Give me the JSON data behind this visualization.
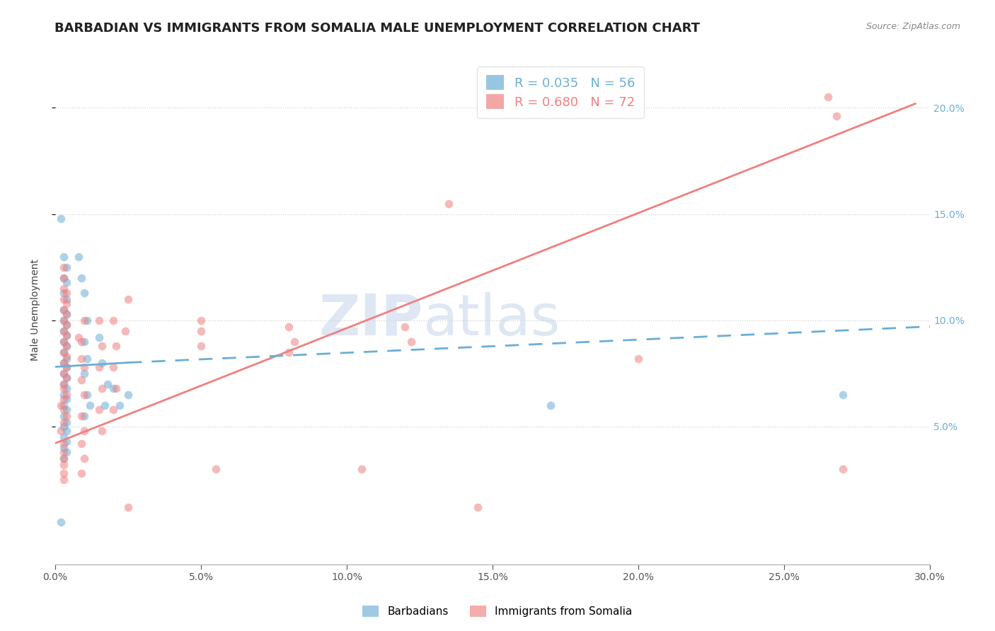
{
  "title": "BARBADIAN VS IMMIGRANTS FROM SOMALIA MALE UNEMPLOYMENT CORRELATION CHART",
  "source": "Source: ZipAtlas.com",
  "ylabel": "Male Unemployment",
  "xlim": [
    0.0,
    0.3
  ],
  "ylim": [
    -0.015,
    0.225
  ],
  "watermark_parts": [
    "ZIP",
    "atlas"
  ],
  "barbadian_scatter": [
    [
      0.002,
      0.148
    ],
    [
      0.003,
      0.13
    ],
    [
      0.004,
      0.125
    ],
    [
      0.003,
      0.12
    ],
    [
      0.004,
      0.118
    ],
    [
      0.003,
      0.113
    ],
    [
      0.004,
      0.11
    ],
    [
      0.003,
      0.105
    ],
    [
      0.004,
      0.103
    ],
    [
      0.003,
      0.1
    ],
    [
      0.004,
      0.098
    ],
    [
      0.003,
      0.095
    ],
    [
      0.004,
      0.093
    ],
    [
      0.003,
      0.09
    ],
    [
      0.004,
      0.088
    ],
    [
      0.003,
      0.085
    ],
    [
      0.004,
      0.082
    ],
    [
      0.003,
      0.08
    ],
    [
      0.004,
      0.078
    ],
    [
      0.003,
      0.075
    ],
    [
      0.004,
      0.073
    ],
    [
      0.003,
      0.07
    ],
    [
      0.004,
      0.068
    ],
    [
      0.003,
      0.065
    ],
    [
      0.004,
      0.063
    ],
    [
      0.003,
      0.06
    ],
    [
      0.004,
      0.058
    ],
    [
      0.003,
      0.055
    ],
    [
      0.004,
      0.052
    ],
    [
      0.003,
      0.05
    ],
    [
      0.004,
      0.048
    ],
    [
      0.003,
      0.045
    ],
    [
      0.004,
      0.043
    ],
    [
      0.003,
      0.04
    ],
    [
      0.004,
      0.038
    ],
    [
      0.003,
      0.035
    ],
    [
      0.008,
      0.13
    ],
    [
      0.009,
      0.12
    ],
    [
      0.01,
      0.113
    ],
    [
      0.011,
      0.1
    ],
    [
      0.01,
      0.09
    ],
    [
      0.011,
      0.082
    ],
    [
      0.01,
      0.075
    ],
    [
      0.011,
      0.065
    ],
    [
      0.012,
      0.06
    ],
    [
      0.01,
      0.055
    ],
    [
      0.015,
      0.092
    ],
    [
      0.016,
      0.08
    ],
    [
      0.018,
      0.07
    ],
    [
      0.017,
      0.06
    ],
    [
      0.02,
      0.068
    ],
    [
      0.022,
      0.06
    ],
    [
      0.025,
      0.065
    ],
    [
      0.17,
      0.06
    ],
    [
      0.27,
      0.065
    ],
    [
      0.002,
      0.005
    ]
  ],
  "somalia_scatter": [
    [
      0.002,
      0.048
    ],
    [
      0.003,
      0.052
    ],
    [
      0.003,
      0.058
    ],
    [
      0.002,
      0.06
    ],
    [
      0.003,
      0.063
    ],
    [
      0.004,
      0.055
    ],
    [
      0.003,
      0.068
    ],
    [
      0.004,
      0.065
    ],
    [
      0.003,
      0.07
    ],
    [
      0.004,
      0.073
    ],
    [
      0.003,
      0.075
    ],
    [
      0.004,
      0.078
    ],
    [
      0.003,
      0.08
    ],
    [
      0.004,
      0.083
    ],
    [
      0.003,
      0.085
    ],
    [
      0.004,
      0.088
    ],
    [
      0.003,
      0.09
    ],
    [
      0.004,
      0.093
    ],
    [
      0.003,
      0.095
    ],
    [
      0.004,
      0.098
    ],
    [
      0.003,
      0.1
    ],
    [
      0.004,
      0.103
    ],
    [
      0.003,
      0.105
    ],
    [
      0.004,
      0.108
    ],
    [
      0.003,
      0.11
    ],
    [
      0.004,
      0.113
    ],
    [
      0.003,
      0.115
    ],
    [
      0.003,
      0.12
    ],
    [
      0.003,
      0.125
    ],
    [
      0.003,
      0.042
    ],
    [
      0.003,
      0.038
    ],
    [
      0.003,
      0.035
    ],
    [
      0.003,
      0.032
    ],
    [
      0.003,
      0.028
    ],
    [
      0.003,
      0.025
    ],
    [
      0.008,
      0.092
    ],
    [
      0.009,
      0.082
    ],
    [
      0.01,
      0.1
    ],
    [
      0.009,
      0.09
    ],
    [
      0.01,
      0.078
    ],
    [
      0.009,
      0.072
    ],
    [
      0.01,
      0.065
    ],
    [
      0.009,
      0.055
    ],
    [
      0.01,
      0.048
    ],
    [
      0.009,
      0.042
    ],
    [
      0.01,
      0.035
    ],
    [
      0.009,
      0.028
    ],
    [
      0.015,
      0.1
    ],
    [
      0.016,
      0.088
    ],
    [
      0.015,
      0.078
    ],
    [
      0.016,
      0.068
    ],
    [
      0.015,
      0.058
    ],
    [
      0.016,
      0.048
    ],
    [
      0.02,
      0.1
    ],
    [
      0.021,
      0.088
    ],
    [
      0.02,
      0.078
    ],
    [
      0.021,
      0.068
    ],
    [
      0.02,
      0.058
    ],
    [
      0.025,
      0.11
    ],
    [
      0.024,
      0.095
    ],
    [
      0.05,
      0.095
    ],
    [
      0.05,
      0.088
    ],
    [
      0.05,
      0.1
    ],
    [
      0.08,
      0.097
    ],
    [
      0.082,
      0.09
    ],
    [
      0.08,
      0.085
    ],
    [
      0.12,
      0.097
    ],
    [
      0.122,
      0.09
    ],
    [
      0.135,
      0.155
    ],
    [
      0.2,
      0.082
    ],
    [
      0.265,
      0.205
    ],
    [
      0.268,
      0.196
    ],
    [
      0.27,
      0.03
    ],
    [
      0.055,
      0.03
    ],
    [
      0.105,
      0.03
    ],
    [
      0.025,
      0.012
    ],
    [
      0.145,
      0.012
    ]
  ],
  "barbadian_line_solid": {
    "x": [
      0.0,
      0.025
    ],
    "y": [
      0.078,
      0.08
    ]
  },
  "barbadian_line_dashed": {
    "x": [
      0.025,
      0.3
    ],
    "y": [
      0.08,
      0.097
    ]
  },
  "somalia_line": {
    "x": [
      0.0,
      0.295
    ],
    "y": [
      0.042,
      0.202
    ]
  },
  "scatter_alpha": 0.55,
  "scatter_size": 70,
  "blue_color": "#6baed6",
  "pink_color": "#f08080",
  "grid_color": "#d0d0d0",
  "background_color": "#ffffff",
  "right_ytick_color": "#6baed6",
  "title_fontsize": 13,
  "axis_label_fontsize": 10
}
